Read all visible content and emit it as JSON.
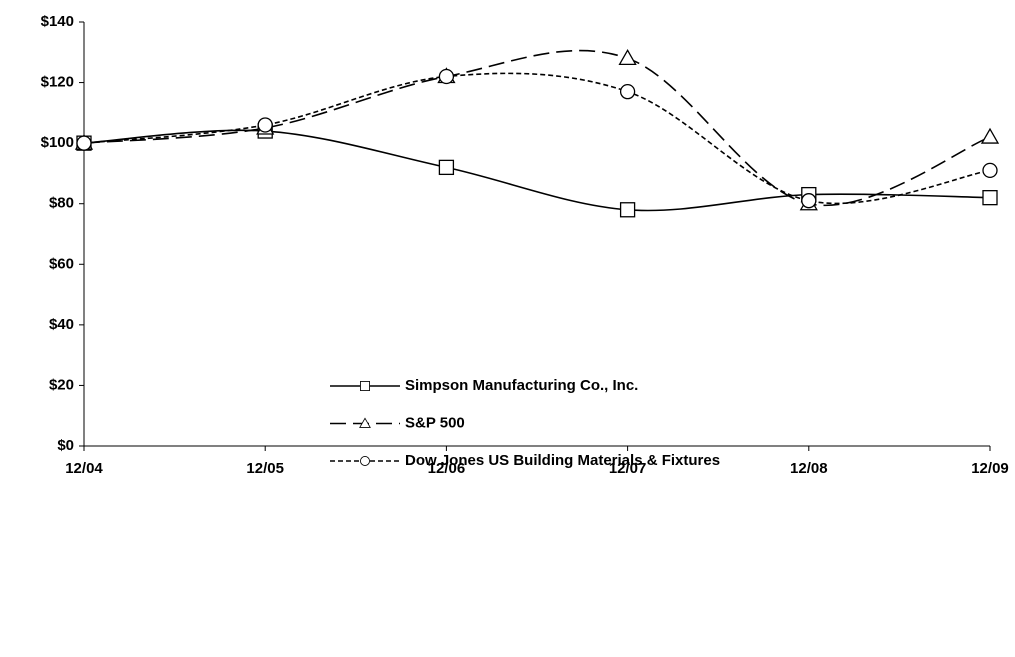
{
  "chart_data": {
    "type": "line",
    "categories": [
      "12/04",
      "12/05",
      "12/06",
      "12/07",
      "12/08",
      "12/09"
    ],
    "series": [
      {
        "name": "Simpson Manufacturing Co., Inc.",
        "color": "#000000",
        "marker": "square",
        "dash": "solid",
        "values": [
          100,
          104,
          92,
          78,
          83,
          82
        ]
      },
      {
        "name": "S&P 500",
        "color": "#000000",
        "marker": "triangle",
        "dash": "long",
        "values": [
          100,
          105,
          122,
          128,
          80,
          102
        ]
      },
      {
        "name": "Dow Jones US Building Materials & Fixtures",
        "color": "#000000",
        "marker": "circle",
        "dash": "short",
        "values": [
          100,
          106,
          122,
          117,
          81,
          91
        ]
      }
    ],
    "ylim": [
      0,
      140
    ],
    "yticks": [
      {
        "value": 0,
        "label": "$0"
      },
      {
        "value": 20,
        "label": "$20"
      },
      {
        "value": 40,
        "label": "$40"
      },
      {
        "value": 60,
        "label": "$60"
      },
      {
        "value": 80,
        "label": "$80"
      },
      {
        "value": 100,
        "label": "$100"
      },
      {
        "value": 120,
        "label": "$120"
      },
      {
        "value": 140,
        "label": "$140"
      }
    ],
    "grid": false,
    "smooth": true,
    "legend": "bottom"
  }
}
